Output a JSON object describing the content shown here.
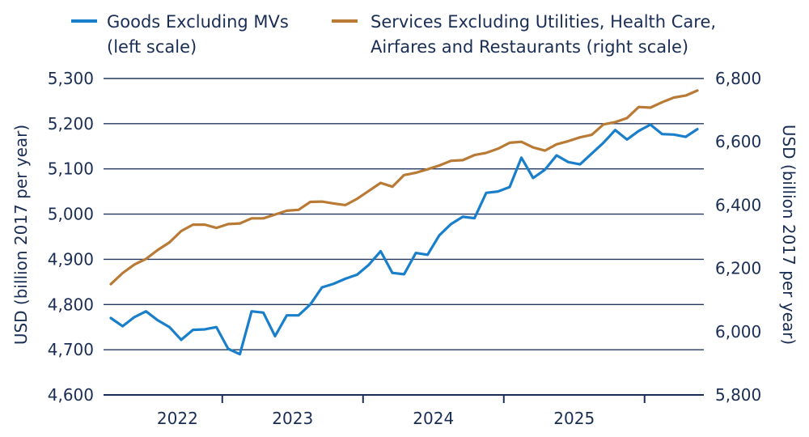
{
  "chart_data": {
    "type": "line",
    "x_tick_labels": [
      "2022",
      "2023",
      "2024",
      "2025"
    ],
    "left_axis": {
      "label": "USD (billion 2017 per year)",
      "range": [
        4600,
        5300
      ],
      "ticks": [
        "4,600",
        "4,700",
        "4,800",
        "4,900",
        "5,000",
        "5,100",
        "5,200",
        "5,300"
      ]
    },
    "right_axis": {
      "label": "USD (billion 2017 per year)",
      "range": [
        5800,
        6800
      ],
      "ticks": [
        "5,800",
        "6,000",
        "6,200",
        "6,400",
        "6,600",
        "6,800"
      ]
    },
    "grid": "horizontal",
    "legend_position": "top",
    "series": [
      {
        "name": "Goods Excluding MVs",
        "legend_lines": [
          "Goods Excluding MVs",
          "(left scale)"
        ],
        "axis": "left",
        "color": "#1a7fcb",
        "values": [
          4770,
          4752,
          4772,
          4785,
          4765,
          4750,
          4722,
          4744,
          4745,
          4750,
          4702,
          4690,
          4785,
          4782,
          4730,
          4776,
          4776,
          4800,
          4838,
          4846,
          4857,
          4866,
          4888,
          4918,
          4870,
          4867,
          4914,
          4910,
          4953,
          4978,
          4994,
          4991,
          5047,
          5050,
          5060,
          5125,
          5080,
          5098,
          5130,
          5115,
          5110,
          5134,
          5158,
          5186,
          5165,
          5184,
          5198,
          5177,
          5176,
          5171,
          5188
        ]
      },
      {
        "name": "Services Excluding Utilities, Health Care, Airfares and Restaurants (right scale)",
        "legend_lines": [
          "Services Excluding Utilities, Health Care,",
          "Airfares and Restaurants (right scale)"
        ],
        "axis": "right",
        "color": "#b97a35",
        "values": [
          6150,
          6185,
          6212,
          6230,
          6258,
          6282,
          6318,
          6338,
          6338,
          6328,
          6340,
          6342,
          6358,
          6358,
          6370,
          6382,
          6385,
          6410,
          6411,
          6405,
          6400,
          6420,
          6445,
          6470,
          6458,
          6495,
          6502,
          6513,
          6525,
          6540,
          6542,
          6558,
          6565,
          6578,
          6597,
          6600,
          6582,
          6572,
          6592,
          6602,
          6614,
          6622,
          6655,
          6662,
          6675,
          6710,
          6708,
          6725,
          6740,
          6746,
          6762
        ]
      }
    ]
  }
}
